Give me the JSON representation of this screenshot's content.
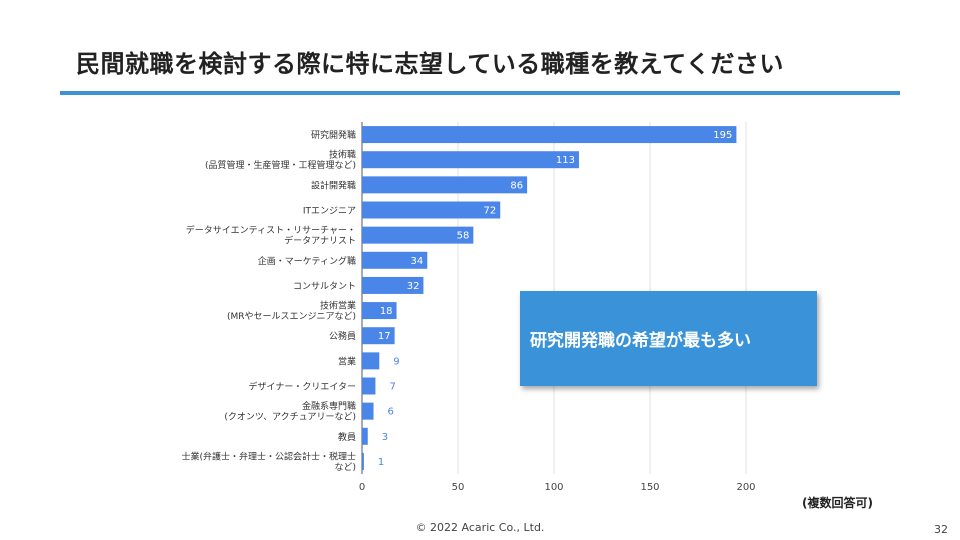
{
  "slide": {
    "title": "民間就職を検討する際に特に志望している職種を教えてください",
    "accent_color": "#3b93d6",
    "callout_text": "研究開発職の希望が最も多い",
    "callout_color": "#3a93d8",
    "note": "(複数回答可)",
    "footer": "© 2022 Acaric Co., Ltd.",
    "page_number": "32"
  },
  "chart_data": {
    "type": "bar",
    "orientation": "horizontal",
    "title": "",
    "xlabel": "",
    "ylabel": "",
    "xlim": [
      0,
      200
    ],
    "xticks": [
      0,
      50,
      100,
      150,
      200
    ],
    "grid": true,
    "bar_color": "#4a86e8",
    "categories": [
      [
        "研究開発職"
      ],
      [
        "技術職",
        "(品質管理・生産管理・工程管理など)"
      ],
      [
        "設計開発職"
      ],
      [
        "ITエンジニア"
      ],
      [
        "データサイエンティスト・リサーチャー・",
        "データアナリスト"
      ],
      [
        "企画・マーケティング職"
      ],
      [
        "コンサルタント"
      ],
      [
        "技術営業",
        "(MRやセールスエンジニアなど)"
      ],
      [
        "公務員"
      ],
      [
        "営業"
      ],
      [
        "デザイナー・クリエイター"
      ],
      [
        "金融系専門職",
        "(クオンツ、アクチュアリーなど)"
      ],
      [
        "教員"
      ],
      [
        "士業(弁護士・弁理士・公認会計士・税理士",
        "など)"
      ]
    ],
    "values": [
      195,
      113,
      86,
      72,
      58,
      34,
      32,
      18,
      17,
      9,
      7,
      6,
      3,
      1
    ]
  }
}
